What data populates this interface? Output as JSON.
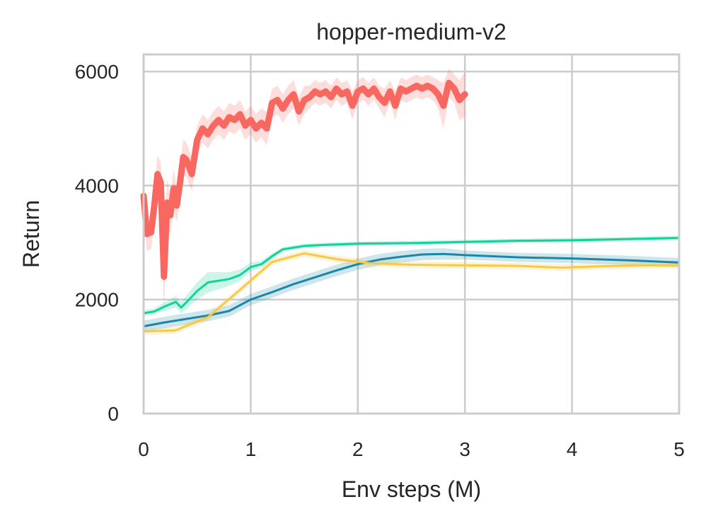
{
  "chart_data": {
    "type": "line",
    "title": "hopper-medium-v2",
    "xlabel": "Env steps (M)",
    "ylabel": "Return",
    "xlim": [
      0,
      5
    ],
    "ylim": [
      0,
      6300
    ],
    "xticks": [
      0,
      1,
      2,
      3,
      4,
      5
    ],
    "yticks": [
      0,
      2000,
      4000,
      6000
    ],
    "xtick_labels": [
      "0",
      "1",
      "2",
      "3",
      "4",
      "5"
    ],
    "ytick_labels": [
      "0",
      "2000",
      "4000",
      "6000"
    ],
    "grid": true,
    "series": [
      {
        "color": "#1a87a6",
        "line_width": 3,
        "x": [
          0,
          0.2,
          0.4,
          0.6,
          0.8,
          1.0,
          1.2,
          1.4,
          1.6,
          1.8,
          2.0,
          2.2,
          2.4,
          2.6,
          2.8,
          3.0,
          3.5,
          4.0,
          4.5,
          5.0
        ],
        "y": [
          1530,
          1600,
          1660,
          1720,
          1800,
          2000,
          2130,
          2270,
          2390,
          2510,
          2620,
          2700,
          2750,
          2790,
          2800,
          2780,
          2740,
          2720,
          2690,
          2650
        ],
        "band": [
          100,
          100,
          100,
          100,
          100,
          100,
          100,
          100,
          100,
          100,
          100,
          100,
          100,
          100,
          100,
          80,
          80,
          80,
          80,
          80
        ]
      },
      {
        "color": "#f7c948",
        "line_width": 3,
        "x": [
          0,
          0.3,
          0.6,
          0.9,
          1.2,
          1.5,
          1.8,
          2.1,
          2.5,
          3.0,
          3.5,
          3.9,
          4.2,
          4.6,
          5.0
        ],
        "y": [
          1440,
          1460,
          1690,
          2170,
          2660,
          2810,
          2710,
          2640,
          2610,
          2600,
          2590,
          2560,
          2580,
          2600,
          2600
        ],
        "band": [
          60,
          60,
          60,
          60,
          60,
          60,
          60,
          60,
          60,
          60,
          60,
          60,
          60,
          60,
          60
        ]
      },
      {
        "color": "#13d19a",
        "line_width": 3,
        "x": [
          0,
          0.1,
          0.2,
          0.3,
          0.35,
          0.4,
          0.5,
          0.6,
          0.7,
          0.8,
          0.9,
          1.0,
          1.1,
          1.2,
          1.3,
          1.5,
          1.7,
          2.0,
          2.5,
          3.0,
          3.5,
          4.0,
          4.5,
          5.0
        ],
        "y": [
          1760,
          1790,
          1880,
          1960,
          1860,
          1950,
          2150,
          2300,
          2330,
          2360,
          2430,
          2570,
          2620,
          2760,
          2880,
          2940,
          2960,
          2980,
          2990,
          3010,
          3030,
          3040,
          3060,
          3080
        ],
        "band": [
          50,
          50,
          80,
          100,
          100,
          120,
          150,
          180,
          150,
          120,
          100,
          80,
          60,
          50,
          40,
          40,
          40,
          40,
          40,
          40,
          40,
          40,
          40,
          40
        ]
      },
      {
        "color": "#f96761",
        "line_width": 9,
        "x": [
          0,
          0.03,
          0.07,
          0.1,
          0.13,
          0.16,
          0.19,
          0.22,
          0.25,
          0.28,
          0.31,
          0.34,
          0.37,
          0.4,
          0.45,
          0.5,
          0.55,
          0.6,
          0.65,
          0.7,
          0.75,
          0.8,
          0.85,
          0.9,
          0.95,
          1.0,
          1.05,
          1.1,
          1.15,
          1.2,
          1.25,
          1.3,
          1.35,
          1.4,
          1.45,
          1.5,
          1.55,
          1.6,
          1.65,
          1.7,
          1.75,
          1.8,
          1.85,
          1.9,
          1.95,
          2.0,
          2.05,
          2.1,
          2.15,
          2.2,
          2.25,
          2.3,
          2.35,
          2.4,
          2.45,
          2.5,
          2.55,
          2.6,
          2.65,
          2.7,
          2.75,
          2.8,
          2.85,
          2.9,
          2.95,
          3.0
        ],
        "y": [
          3820,
          3150,
          3180,
          3650,
          4200,
          4050,
          2400,
          3700,
          3480,
          3950,
          3650,
          4050,
          4500,
          4450,
          4200,
          4800,
          5000,
          4900,
          5050,
          5150,
          5050,
          5200,
          5150,
          5250,
          5050,
          5150,
          5000,
          5100,
          5000,
          5450,
          5500,
          5350,
          5500,
          5600,
          5300,
          5500,
          5550,
          5650,
          5600,
          5650,
          5550,
          5700,
          5600,
          5650,
          5400,
          5650,
          5700,
          5600,
          5700,
          5550,
          5450,
          5650,
          5400,
          5700,
          5650,
          5700,
          5750,
          5700,
          5750,
          5700,
          5600,
          5400,
          5800,
          5700,
          5500,
          5600
        ],
        "band": [
          250,
          300,
          300,
          300,
          350,
          350,
          600,
          400,
          350,
          350,
          300,
          300,
          300,
          300,
          300,
          250,
          250,
          250,
          250,
          250,
          250,
          250,
          250,
          250,
          250,
          250,
          250,
          250,
          300,
          250,
          250,
          250,
          250,
          250,
          250,
          250,
          200,
          200,
          200,
          200,
          200,
          200,
          200,
          200,
          250,
          200,
          200,
          200,
          200,
          200,
          250,
          200,
          250,
          200,
          200,
          200,
          200,
          200,
          200,
          200,
          250,
          400,
          250,
          250,
          350,
          400
        ]
      }
    ]
  }
}
